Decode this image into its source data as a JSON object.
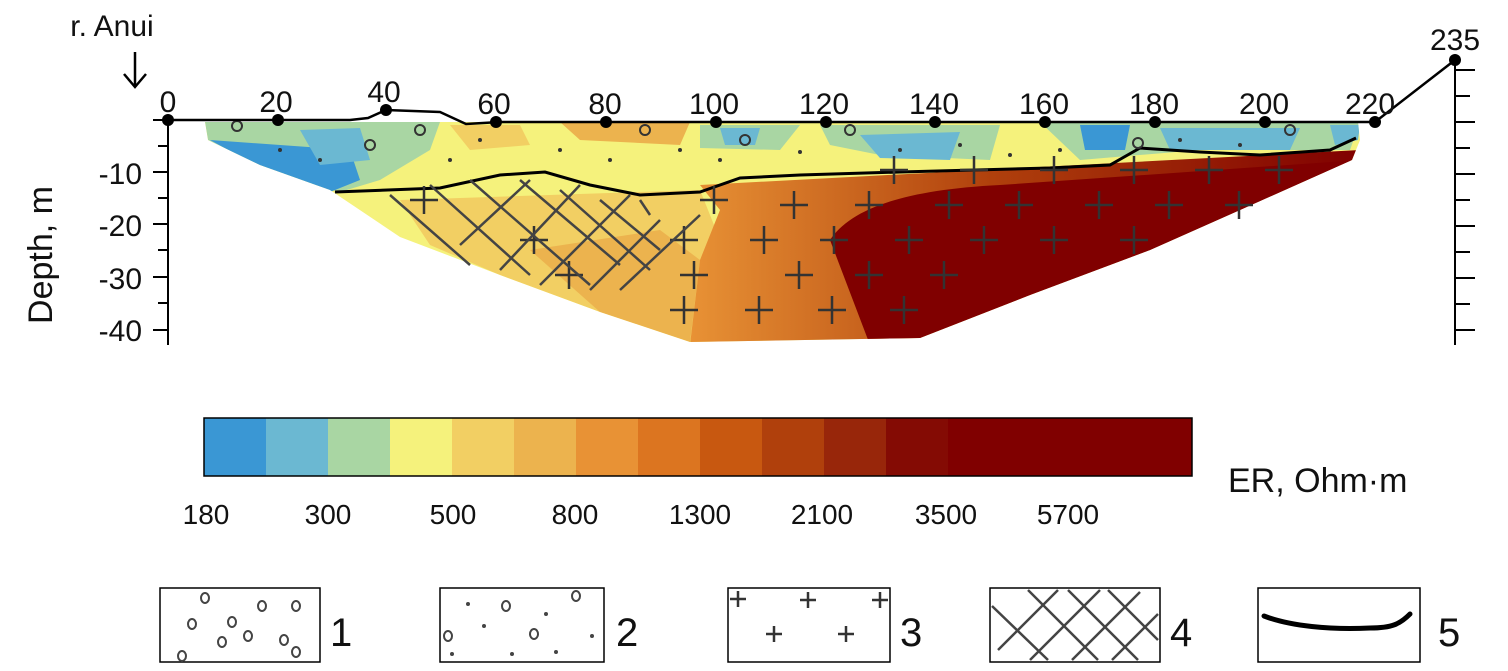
{
  "river_label": "r. Anui",
  "end_elevation_label": "235",
  "x_ticks": [
    "0",
    "20",
    "40",
    "60",
    "80",
    "100",
    "120",
    "140",
    "160",
    "180",
    "200",
    "220"
  ],
  "y_axis_title": "Depth, m",
  "y_ticks": [
    "-10",
    "-20",
    "-30",
    "-40"
  ],
  "colorbar": {
    "colors": [
      "#3a97d4",
      "#6bb8d2",
      "#a9d6a3",
      "#f5f27c",
      "#f2cf63",
      "#ecb34e",
      "#e89235",
      "#dc7520",
      "#c85810",
      "#b0400c",
      "#98260a",
      "#840b04",
      "#800000"
    ],
    "labels": [
      "180",
      "300",
      "500",
      "800",
      "1300",
      "2100",
      "3500",
      "5700"
    ],
    "unit": "ER, Ohm·m"
  },
  "legend": [
    {
      "number": "1",
      "pattern": "open-circles"
    },
    {
      "number": "2",
      "pattern": "dots-and-circles"
    },
    {
      "number": "3",
      "pattern": "crosses"
    },
    {
      "number": "4",
      "pattern": "crosshatch"
    },
    {
      "number": "5",
      "pattern": "boundary-line"
    }
  ]
}
